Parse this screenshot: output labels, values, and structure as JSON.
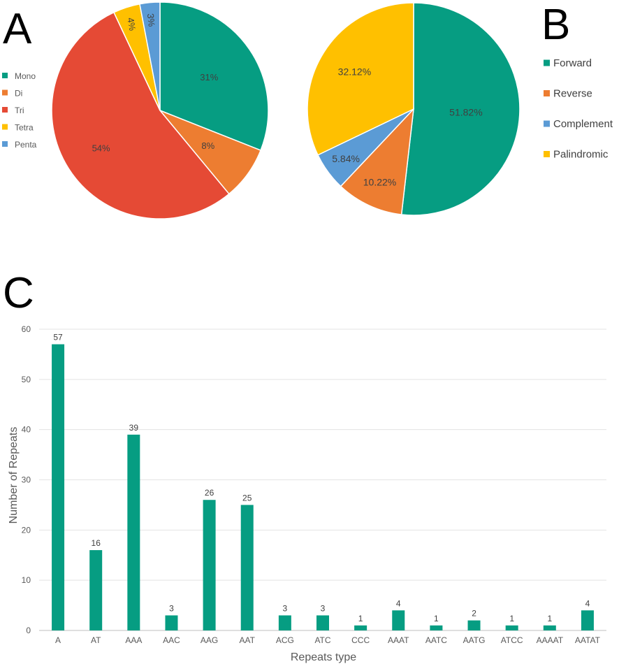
{
  "panels": {
    "a": "A",
    "b": "B",
    "c": "C"
  },
  "chart_data": [
    {
      "id": "a",
      "type": "pie",
      "labels": [
        "Mono",
        "Di",
        "Tri",
        "Tetra",
        "Penta"
      ],
      "values": [
        31,
        8,
        54,
        4,
        3
      ],
      "value_labels": [
        "31%",
        "8%",
        "54%",
        "4%",
        "3%"
      ],
      "colors": [
        "#069D82",
        "#ED7D31",
        "#E54A35",
        "#FFC000",
        "#5B9BD5"
      ],
      "legend_position": "left"
    },
    {
      "id": "b",
      "type": "pie",
      "labels": [
        "Forward",
        "Reverse",
        "Complement",
        "Palindromic"
      ],
      "values": [
        51.82,
        10.22,
        5.84,
        32.12
      ],
      "value_labels": [
        "51.82%",
        "10.22%",
        "5.84%",
        "32.12%"
      ],
      "colors": [
        "#069D82",
        "#ED7D31",
        "#5B9BD5",
        "#FFC000"
      ],
      "legend_position": "right"
    },
    {
      "id": "c",
      "type": "bar",
      "categories": [
        "A",
        "AT",
        "AAA",
        "AAC",
        "AAG",
        "AAT",
        "ACG",
        "ATC",
        "CCC",
        "AAAT",
        "AATC",
        "AATG",
        "ATCC",
        "AAAAT",
        "AATAT"
      ],
      "values": [
        57,
        16,
        39,
        3,
        26,
        25,
        3,
        3,
        1,
        4,
        1,
        2,
        1,
        1,
        4
      ],
      "value_labels": [
        "57",
        "16",
        "39",
        "3",
        "26",
        "25",
        "3",
        "3",
        "1",
        "4",
        "1",
        "2",
        "1",
        "1",
        "4"
      ],
      "xlabel": "Repeats type",
      "ylabel": "Number of Repeats",
      "ylim": [
        0,
        60
      ],
      "yticks": [
        "0",
        "10",
        "20",
        "30",
        "40",
        "50",
        "60"
      ],
      "grid": true,
      "color": "#069D82"
    }
  ]
}
